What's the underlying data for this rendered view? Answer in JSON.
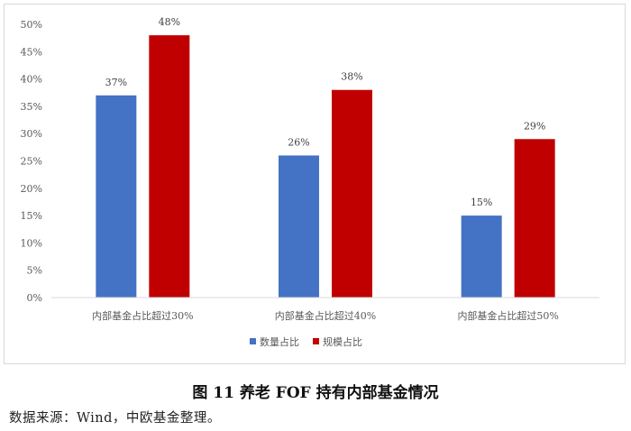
{
  "chart_data": {
    "type": "bar",
    "categories": [
      "内部基金占比超过30%",
      "内部基金占比超过40%",
      "内部基金占比超过50%"
    ],
    "series": [
      {
        "name": "数量占比",
        "values": [
          37,
          26,
          15
        ],
        "labels": [
          "37%",
          "26%",
          "15%"
        ],
        "color": "#4472c4"
      },
      {
        "name": "规模占比",
        "values": [
          48,
          38,
          29
        ],
        "labels": [
          "48%",
          "38%",
          "29%"
        ],
        "color": "#c00000"
      }
    ],
    "ylim": [
      0,
      50
    ],
    "yticks": [
      0,
      5,
      10,
      15,
      20,
      25,
      30,
      35,
      40,
      45,
      50
    ],
    "ytick_labels": [
      "0%",
      "5%",
      "10%",
      "15%",
      "20%",
      "25%",
      "30%",
      "35%",
      "40%",
      "45%",
      "50%"
    ],
    "grid": false,
    "legend": "bottom",
    "title": "",
    "xlabel": "",
    "ylabel": ""
  },
  "caption": "图 11  养老 FOF 持有内部基金情况",
  "source": "数据来源：Wind，中欧基金整理。"
}
